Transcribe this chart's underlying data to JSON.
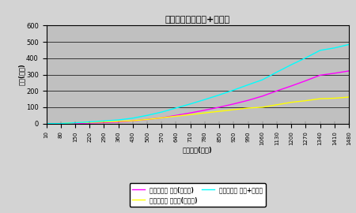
{
  "title": "税源移譲前の国税+地方税",
  "xlabel": "課税所得(万円)",
  "ylabel": "税額(万円)",
  "x_values": [
    10,
    80,
    150,
    220,
    290,
    360,
    430,
    500,
    570,
    640,
    710,
    780,
    850,
    920,
    990,
    1060,
    1130,
    1200,
    1270,
    1340,
    1410,
    1480
  ],
  "national_tax": [
    0,
    0,
    0,
    3,
    6,
    9,
    16,
    25,
    35,
    50,
    65,
    82,
    100,
    120,
    142,
    168,
    200,
    230,
    262,
    296,
    308,
    322
  ],
  "local_tax": [
    0,
    0,
    5,
    7,
    10,
    13,
    17,
    25,
    35,
    45,
    55,
    65,
    75,
    85,
    95,
    100,
    115,
    130,
    140,
    152,
    155,
    162
  ],
  "total_tax": [
    0,
    0,
    5,
    10,
    16,
    22,
    33,
    50,
    70,
    95,
    120,
    147,
    175,
    205,
    237,
    268,
    315,
    360,
    402,
    448,
    463,
    484
  ],
  "national_color": "#FF00FF",
  "local_color": "#FFFF00",
  "total_color": "#00FFFF",
  "ylim": [
    0,
    600
  ],
  "xlim_min": 10,
  "xlim_max": 1480,
  "plot_bg_color": "#C0C0C0",
  "fig_bg_color": "#D3D3D3",
  "legend_national": "税源移譲前 国税(所得税)",
  "legend_local": "税源移譲前 地方税(住民税)",
  "legend_total": "税源移譲前 国税+地方税",
  "yticks": [
    0,
    100,
    200,
    300,
    400,
    500,
    600
  ],
  "xtick_labels": [
    "10",
    "80",
    "150",
    "220",
    "290",
    "360",
    "430",
    "500",
    "570",
    "640",
    "710",
    "780",
    "850",
    "920",
    "990",
    "1060",
    "1130",
    "1200",
    "1270",
    "1340",
    "1410",
    "1480"
  ]
}
